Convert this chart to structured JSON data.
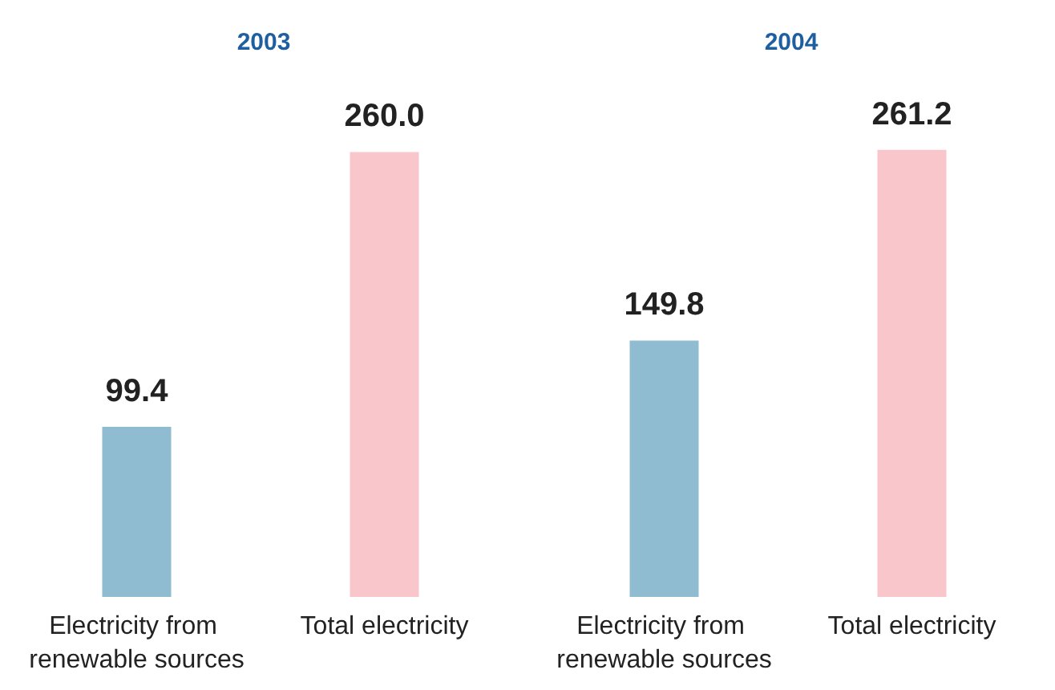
{
  "chart_data": [
    {
      "type": "bar",
      "title": "2003",
      "categories": [
        "Electricity from renewable sources",
        "Total electricity"
      ],
      "values": [
        99.4,
        260.0
      ],
      "value_labels": [
        "99.4",
        "260.0"
      ],
      "colors": [
        "#8fbcd1",
        "#f9c6cc"
      ]
    },
    {
      "type": "bar",
      "title": "2004",
      "categories": [
        "Electricity from renewable sources",
        "Total electricity"
      ],
      "values": [
        149.8,
        261.2
      ],
      "value_labels": [
        "149.8",
        "261.2"
      ],
      "colors": [
        "#8fbcd1",
        "#f9c6cc"
      ]
    }
  ]
}
